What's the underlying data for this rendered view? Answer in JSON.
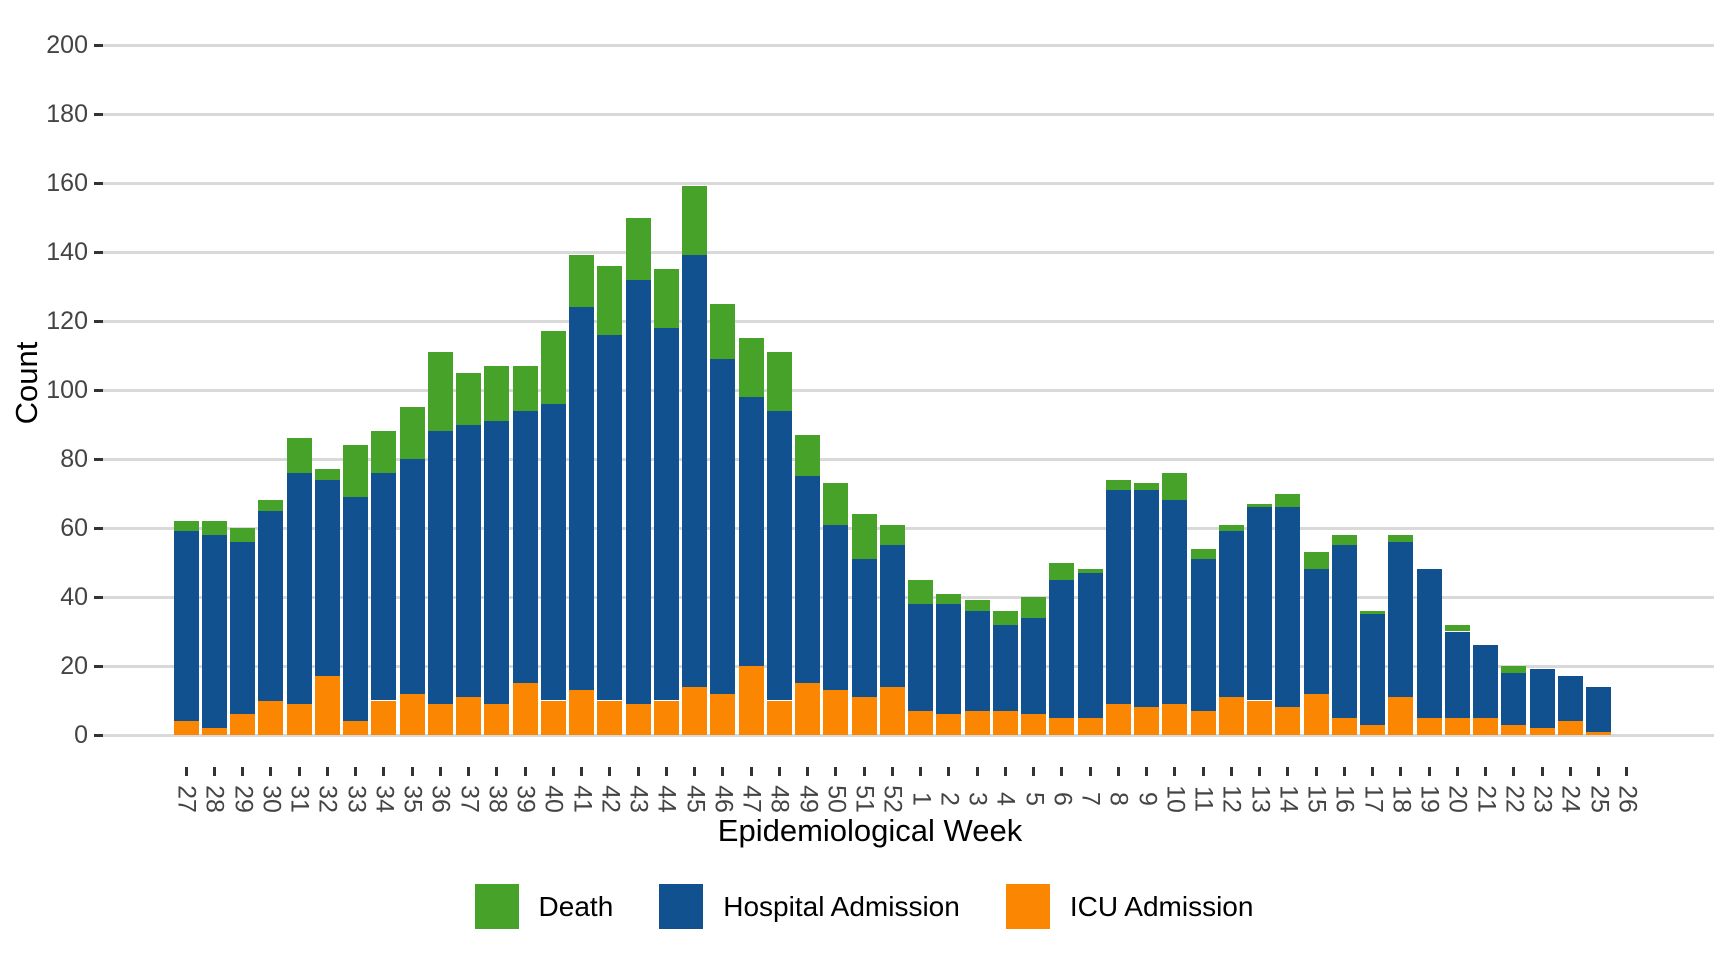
{
  "y_axis": {
    "title": "Count"
  },
  "x_axis": {
    "title": "Epidemiological Week"
  },
  "legend": {
    "items": [
      {
        "label": "Death",
        "color": "#47A229"
      },
      {
        "label": "Hospital Admission",
        "color": "#11518F"
      },
      {
        "label": "ICU Admission",
        "color": "#FB8602"
      }
    ]
  },
  "colors": {
    "death": "#47A229",
    "hospital": "#11518F",
    "icu": "#FB8602",
    "gridline": "#D9D9D9",
    "tick": "#333333",
    "tick_text": "#444444"
  },
  "chart_data": {
    "type": "bar",
    "stacked": true,
    "title": "",
    "xlabel": "Epidemiological Week",
    "ylabel": "Count",
    "ylim": [
      0,
      200
    ],
    "y_ticks": [
      0,
      20,
      40,
      60,
      80,
      100,
      120,
      140,
      160,
      180,
      200
    ],
    "grid": "horizontal-major",
    "legend_position": "bottom",
    "categories": [
      "27",
      "28",
      "29",
      "30",
      "31",
      "32",
      "33",
      "34",
      "35",
      "36",
      "37",
      "38",
      "39",
      "40",
      "41",
      "42",
      "43",
      "44",
      "45",
      "46",
      "47",
      "48",
      "49",
      "50",
      "51",
      "52",
      "1",
      "2",
      "3",
      "4",
      "5",
      "6",
      "7",
      "8",
      "9",
      "10",
      "11",
      "12",
      "13",
      "14",
      "15",
      "16",
      "17",
      "18",
      "19",
      "20",
      "21",
      "22",
      "23",
      "24",
      "25",
      "26"
    ],
    "series": [
      {
        "name": "ICU Admission",
        "color": "#FB8602",
        "values": [
          4,
          2,
          6,
          10,
          9,
          17,
          4,
          10,
          12,
          9,
          11,
          9,
          15,
          10,
          13,
          10,
          9,
          10,
          14,
          12,
          20,
          10,
          15,
          13,
          11,
          14,
          7,
          6,
          7,
          7,
          6,
          5,
          5,
          9,
          8,
          9,
          7,
          11,
          10,
          8,
          12,
          5,
          3,
          11,
          5,
          5,
          5,
          3,
          2,
          4,
          1,
          0
        ]
      },
      {
        "name": "Hospital Admission",
        "color": "#11518F",
        "values": [
          55,
          56,
          50,
          55,
          67,
          57,
          65,
          66,
          68,
          79,
          79,
          82,
          79,
          86,
          111,
          106,
          123,
          108,
          125,
          97,
          78,
          84,
          60,
          48,
          40,
          41,
          31,
          32,
          29,
          25,
          28,
          40,
          42,
          62,
          63,
          59,
          44,
          48,
          56,
          58,
          36,
          50,
          32,
          45,
          43,
          25,
          21,
          15,
          17,
          13,
          13,
          0
        ]
      },
      {
        "name": "Death",
        "color": "#47A229",
        "values": [
          3,
          4,
          4,
          3,
          10,
          3,
          15,
          12,
          15,
          23,
          15,
          16,
          13,
          21,
          15,
          20,
          18,
          17,
          20,
          16,
          17,
          17,
          12,
          12,
          13,
          6,
          7,
          3,
          3,
          4,
          6,
          5,
          1,
          3,
          2,
          8,
          3,
          2,
          1,
          4,
          5,
          3,
          1,
          2,
          0,
          2,
          0,
          2,
          0,
          0,
          0,
          0
        ]
      }
    ],
    "stack_totals": [
      62,
      62,
      60,
      68,
      86,
      77,
      84,
      88,
      95,
      111,
      105,
      107,
      107,
      117,
      139,
      136,
      150,
      135,
      159,
      125,
      115,
      111,
      87,
      73,
      64,
      61,
      45,
      41,
      39,
      36,
      40,
      50,
      48,
      74,
      73,
      76,
      54,
      61,
      67,
      70,
      53,
      58,
      36,
      58,
      48,
      32,
      26,
      20,
      19,
      17,
      14,
      0
    ]
  }
}
